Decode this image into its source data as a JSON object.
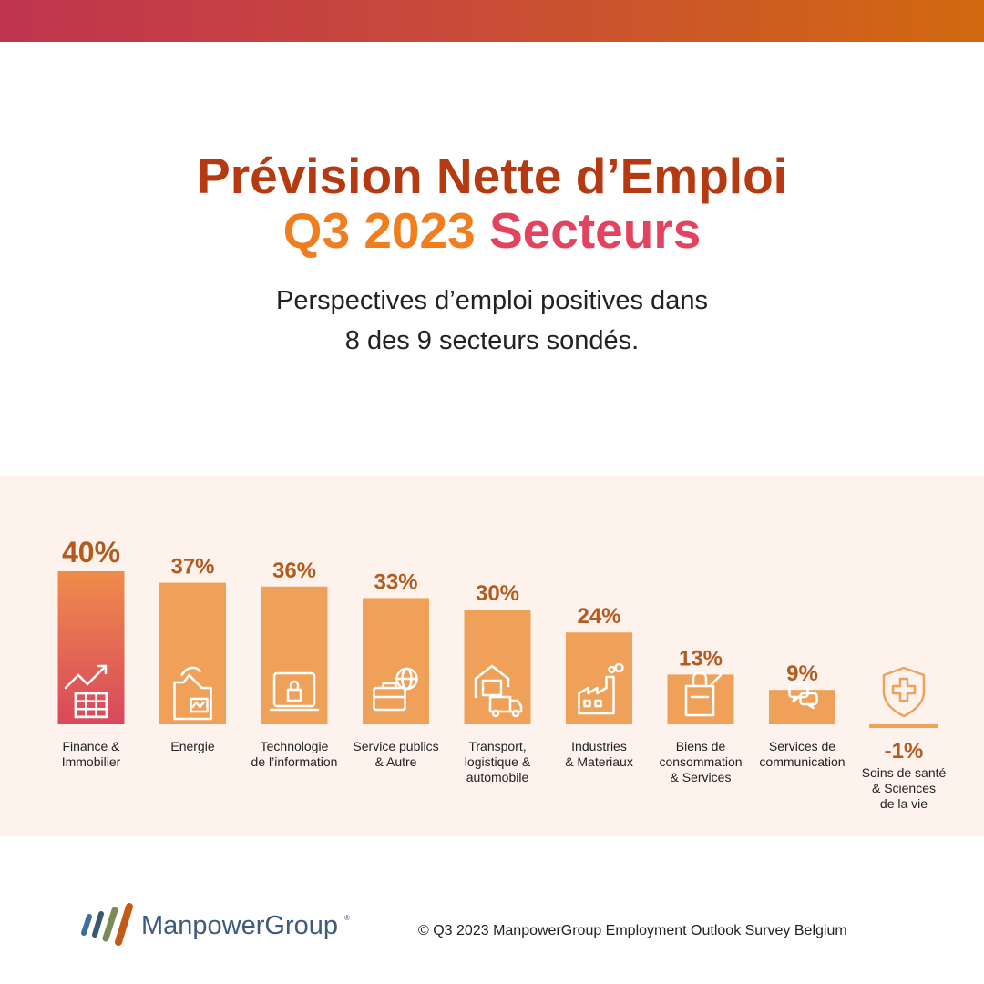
{
  "title": {
    "line1": "Prévision Nette d’Emploi",
    "line2a": "Q3 2023",
    "line2b": "Secteurs"
  },
  "subtitle": {
    "line1": "Perspectives d’emploi positives dans",
    "line2": "8 des 9 secteurs sondés."
  },
  "colors": {
    "bar": "#f0a159",
    "bar_highlight_top": "#ef8c4b",
    "bar_highlight_bottom": "#d9475c",
    "value_label": "#b35a1f",
    "icon_stroke": "#ffffff",
    "health_icon": "#f0a159"
  },
  "chart_data": {
    "type": "bar",
    "categories": [
      "Finance & Immobilier",
      "Energie",
      "Technologie de l’information",
      "Service publics & Autre",
      "Transport, logistique & automobile",
      "Industries & Materiaux",
      "Biens de consommation & Services",
      "Services de communication",
      "Soins de santé & Sciences de la vie"
    ],
    "values": [
      40,
      37,
      36,
      33,
      30,
      24,
      13,
      9,
      -1
    ],
    "value_labels": [
      "40%",
      "37%",
      "36%",
      "33%",
      "30%",
      "24%",
      "13%",
      "9%",
      "-1%"
    ],
    "label_lines": [
      [
        "Finance &",
        "Immobilier"
      ],
      [
        "Energie"
      ],
      [
        "Technologie",
        "de l’information"
      ],
      [
        "Service publics",
        "& Autre"
      ],
      [
        "Transport,",
        "logistique &",
        "automobile"
      ],
      [
        "Industries",
        "& Materiaux"
      ],
      [
        "Biens de",
        "consommation",
        "& Services"
      ],
      [
        "Services de",
        "communication"
      ],
      [
        "Soins de santé",
        "& Sciences",
        "de la vie"
      ]
    ],
    "icons": [
      "chart-growth-icon",
      "factory-energy-icon",
      "laptop-lock-icon",
      "briefcase-globe-icon",
      "warehouse-truck-icon",
      "factory-icon",
      "shopping-bag-icon",
      "chat-bubbles-icon",
      "medical-shield-icon"
    ],
    "highlight_index": 0,
    "ylabel": "",
    "xlabel": "",
    "ylim": [
      -1,
      40
    ],
    "grid": false,
    "legend": "none"
  },
  "footer": {
    "logo_text": "ManpowerGroup",
    "logo_reg": "®",
    "copyright": "© Q3 2023 ManpowerGroup Employment Outlook Survey Belgium"
  }
}
